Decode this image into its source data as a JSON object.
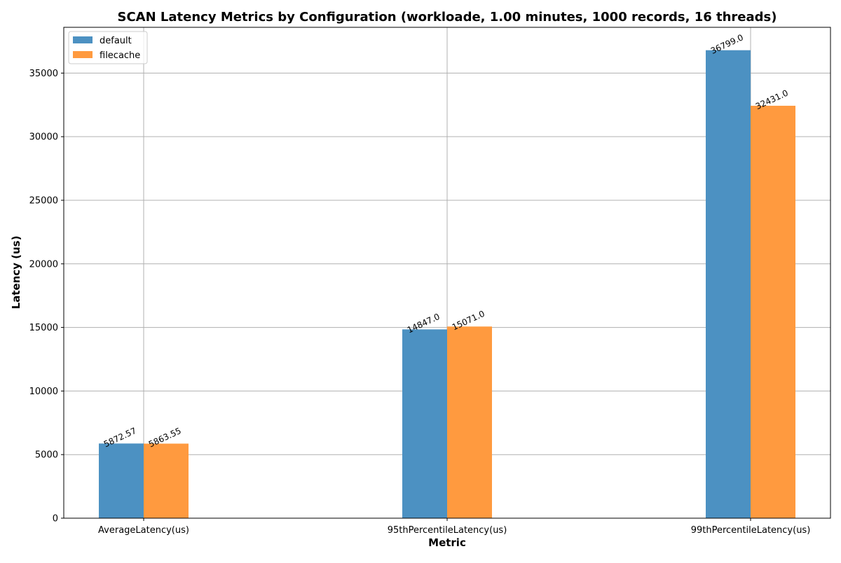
{
  "chart_data": {
    "type": "bar",
    "title": "SCAN Latency Metrics by Configuration (workloade, 1.00 minutes, 1000 records, 16 threads)",
    "xlabel": "Metric",
    "ylabel": "Latency (us)",
    "categories": [
      "AverageLatency(us)",
      "95thPercentileLatency(us)",
      "99thPercentileLatency(us)"
    ],
    "series": [
      {
        "name": "default",
        "color": "#4c91c2",
        "values": [
          5872.57,
          14847.0,
          36799.0
        ],
        "labels": [
          "5872.57",
          "14847.0",
          "36799.0"
        ]
      },
      {
        "name": "filecache",
        "color": "#ff9a3f",
        "values": [
          5863.55,
          15071.0,
          32431.0
        ],
        "labels": [
          "5863.55",
          "15071.0",
          "32431.0"
        ]
      }
    ],
    "ylim": [
      0,
      38600
    ],
    "yticks": [
      0,
      5000,
      10000,
      15000,
      20000,
      25000,
      30000,
      35000
    ],
    "ytick_labels": [
      "0",
      "5000",
      "10000",
      "15000",
      "20000",
      "25000",
      "30000",
      "35000"
    ],
    "grid": true,
    "legend_position": "top-left"
  }
}
